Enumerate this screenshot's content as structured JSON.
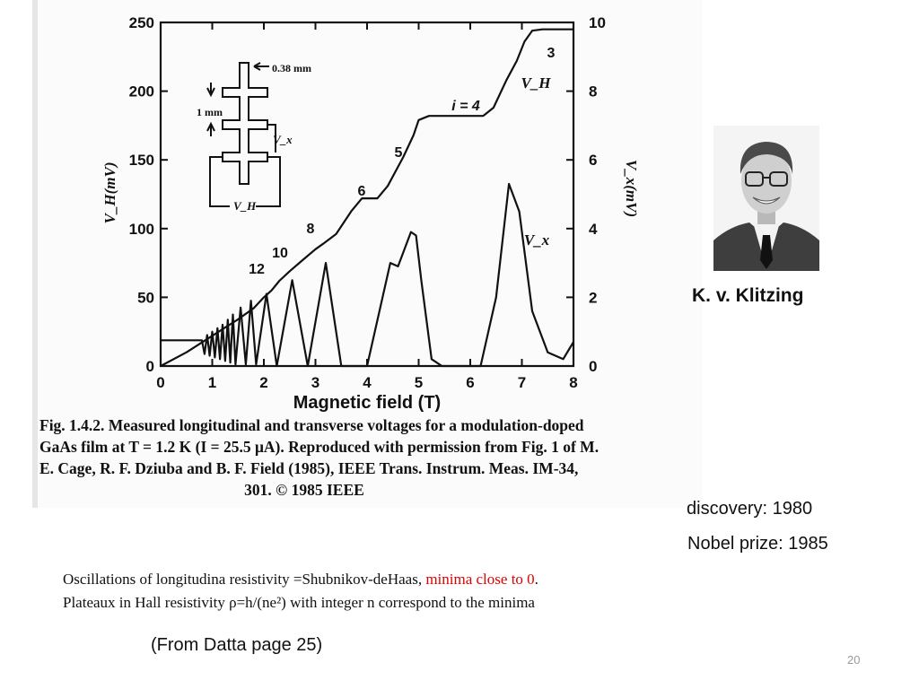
{
  "chart_data": {
    "type": "line",
    "xlabel": "Magnetic field (T)",
    "ylabel_left": "V_H(mV)",
    "ylabel_right": "V_x(mV)",
    "xlim": [
      0,
      8
    ],
    "ylim_left": [
      0,
      250
    ],
    "ylim_right": [
      0,
      10
    ],
    "x_ticks": [
      "0",
      "1",
      "2",
      "3",
      "4",
      "5",
      "6",
      "7",
      "8"
    ],
    "y_left_ticks": [
      "0",
      "50",
      "100",
      "150",
      "200",
      "250"
    ],
    "y_right_ticks": [
      "0",
      "2",
      "4",
      "6",
      "8",
      "10"
    ],
    "series": [
      {
        "name": "V_H",
        "axis": "left",
        "points": [
          [
            0,
            0
          ],
          [
            0.5,
            10
          ],
          [
            1,
            22
          ],
          [
            1.5,
            34
          ],
          [
            1.8,
            42
          ],
          [
            2,
            50
          ],
          [
            2.15,
            55
          ],
          [
            2.3,
            62
          ],
          [
            2.5,
            69
          ],
          [
            2.75,
            77
          ],
          [
            3,
            85
          ],
          [
            3.15,
            89
          ],
          [
            3.4,
            96
          ],
          [
            3.7,
            113
          ],
          [
            3.9,
            122
          ],
          [
            4.2,
            122
          ],
          [
            4.4,
            131
          ],
          [
            4.7,
            152
          ],
          [
            4.9,
            168
          ],
          [
            5,
            179
          ],
          [
            5.2,
            182
          ],
          [
            6.25,
            182
          ],
          [
            6.45,
            188
          ],
          [
            6.7,
            208
          ],
          [
            6.9,
            222
          ],
          [
            7.05,
            236
          ],
          [
            7.2,
            244
          ],
          [
            7.4,
            245
          ],
          [
            8,
            245
          ]
        ]
      },
      {
        "name": "V_x",
        "axis": "right",
        "points": [
          [
            0,
            0.75
          ],
          [
            0.6,
            0.75
          ],
          [
            0.8,
            0.75
          ],
          [
            0.85,
            0.35
          ],
          [
            0.9,
            0.9
          ],
          [
            0.95,
            0.3
          ],
          [
            1.0,
            1.0
          ],
          [
            1.05,
            0.25
          ],
          [
            1.1,
            1.1
          ],
          [
            1.15,
            0.2
          ],
          [
            1.2,
            1.2
          ],
          [
            1.25,
            0.15
          ],
          [
            1.3,
            1.35
          ],
          [
            1.35,
            0.1
          ],
          [
            1.4,
            1.5
          ],
          [
            1.45,
            0.05
          ],
          [
            1.55,
            1.7
          ],
          [
            1.65,
            0.05
          ],
          [
            1.75,
            1.9
          ],
          [
            1.85,
            0.05
          ],
          [
            2.05,
            2.1
          ],
          [
            2.25,
            0
          ],
          [
            2.55,
            2.5
          ],
          [
            2.85,
            0
          ],
          [
            3.2,
            3.0
          ],
          [
            3.5,
            0
          ],
          [
            4.0,
            0
          ],
          [
            4.45,
            3.0
          ],
          [
            4.6,
            2.9
          ],
          [
            4.85,
            3.9
          ],
          [
            4.95,
            3.8
          ],
          [
            5.05,
            2.5
          ],
          [
            5.25,
            0.2
          ],
          [
            5.45,
            0
          ],
          [
            6.2,
            0
          ],
          [
            6.5,
            2.0
          ],
          [
            6.75,
            5.3
          ],
          [
            6.95,
            4.5
          ],
          [
            7.2,
            1.6
          ],
          [
            7.5,
            0.4
          ],
          [
            7.8,
            0.2
          ],
          [
            8,
            0.7
          ]
        ]
      }
    ],
    "annotations": [
      "3",
      "i = 4",
      "5",
      "6",
      "8",
      "10",
      "12",
      "V_H",
      "V_x"
    ],
    "inset": {
      "width_label": "0.38 mm",
      "length_label": "1 mm",
      "vx_label": "V_x",
      "vh_label": "V_H"
    }
  },
  "caption_lines": [
    "Fig. 1.4.2. Measured longitudinal and transverse voltages for a modulation-doped",
    "GaAs film at T = 1.2 K (I = 25.5 μA). Reproduced with permission from Fig. 1 of M.",
    "E. Cage, R. F. Dziuba and B. F. Field (1985), IEEE Trans. Instrum. Meas. IM-34,",
    "301. © 1985 IEEE"
  ],
  "person_name": "K. v. Klitzing",
  "discovery": "discovery: 1980",
  "nobel": "Nobel prize: 1985",
  "notes": {
    "line1_main": "Oscillations of longitudina resistivity =Shubnikov-deHaas, ",
    "line1_red": "minima close to 0",
    "line1_end": ".",
    "line2": "Plateaux in Hall resistivity ρ=h/(ne²)  with integer n correspond to the minima"
  },
  "source": "(From Datta page 25)",
  "slide_number": "20",
  "colors": {
    "accent_red": "#e00000",
    "ink": "#111111",
    "slide_number": "#9a9a9a"
  }
}
